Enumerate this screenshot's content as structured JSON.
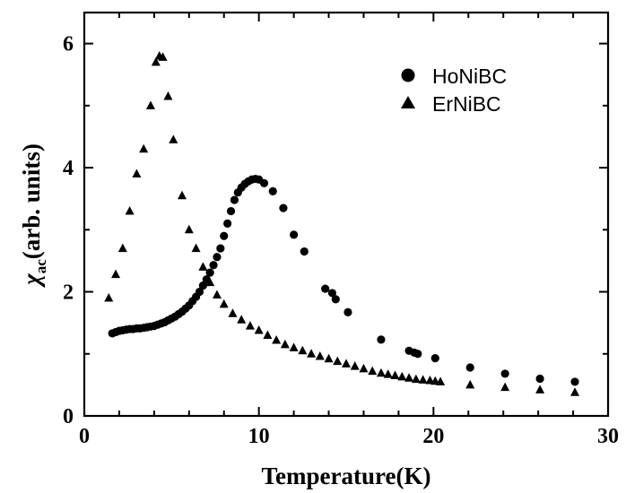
{
  "chart_data": {
    "type": "scatter",
    "xlabel": "Temperature(K)",
    "ylabel_symbol": "χ",
    "ylabel_subscript": "ac",
    "ylabel_rest": "(arb. units)",
    "xlim": [
      0,
      30
    ],
    "ylim": [
      0,
      6.5
    ],
    "xticks": [
      0,
      10,
      20,
      30
    ],
    "yticks": [
      0,
      2,
      4,
      6
    ],
    "grid": false,
    "legend_position": "top-right",
    "series": [
      {
        "name": "HoNiBC",
        "marker": "circle",
        "color": "#000000",
        "x": [
          1.6,
          1.8,
          2.0,
          2.2,
          2.4,
          2.6,
          2.8,
          3.0,
          3.2,
          3.4,
          3.6,
          3.8,
          4.0,
          4.2,
          4.4,
          4.6,
          4.8,
          5.0,
          5.2,
          5.4,
          5.6,
          5.8,
          6.0,
          6.2,
          6.4,
          6.6,
          6.8,
          7.0,
          7.2,
          7.4,
          7.6,
          7.8,
          8.0,
          8.2,
          8.4,
          8.6,
          8.8,
          9.0,
          9.2,
          9.4,
          9.6,
          9.8,
          10.0,
          10.3,
          10.8,
          11.4,
          12.0,
          12.6,
          13.8,
          14.2,
          14.4,
          15.1,
          17.0,
          18.6,
          18.9,
          19.1,
          20.1,
          22.1,
          24.1,
          26.1,
          28.1
        ],
        "y": [
          1.33,
          1.35,
          1.37,
          1.38,
          1.39,
          1.4,
          1.4,
          1.41,
          1.41,
          1.42,
          1.43,
          1.44,
          1.45,
          1.47,
          1.49,
          1.51,
          1.54,
          1.57,
          1.6,
          1.64,
          1.68,
          1.73,
          1.78,
          1.85,
          1.92,
          2.0,
          2.1,
          2.2,
          2.31,
          2.43,
          2.56,
          2.7,
          2.9,
          3.1,
          3.3,
          3.48,
          3.6,
          3.68,
          3.74,
          3.78,
          3.81,
          3.82,
          3.81,
          3.75,
          3.62,
          3.35,
          2.92,
          2.65,
          2.05,
          1.98,
          1.88,
          1.67,
          1.23,
          1.05,
          1.02,
          1.0,
          0.93,
          0.78,
          0.68,
          0.6,
          0.55
        ]
      },
      {
        "name": "ErNiBC",
        "marker": "triangle",
        "color": "#000000",
        "x": [
          1.4,
          1.8,
          2.2,
          2.6,
          3.0,
          3.4,
          3.8,
          4.1,
          4.3,
          4.5,
          4.8,
          5.1,
          5.6,
          6.0,
          6.4,
          6.8,
          7.2,
          7.6,
          8.0,
          8.5,
          9.0,
          9.5,
          10.0,
          10.5,
          11.0,
          11.5,
          12.0,
          12.5,
          13.0,
          13.5,
          14.0,
          14.5,
          15.0,
          15.5,
          16.0,
          16.5,
          17.0,
          17.4,
          17.8,
          18.2,
          18.6,
          19.0,
          19.4,
          19.8,
          20.1,
          20.4,
          22.1,
          24.1,
          26.1,
          28.1
        ],
        "y": [
          1.9,
          2.28,
          2.7,
          3.3,
          3.9,
          4.3,
          5.0,
          5.7,
          5.8,
          5.78,
          5.15,
          4.45,
          3.55,
          3.0,
          2.7,
          2.4,
          2.15,
          1.95,
          1.8,
          1.65,
          1.55,
          1.45,
          1.38,
          1.3,
          1.22,
          1.15,
          1.1,
          1.05,
          1.0,
          0.96,
          0.92,
          0.88,
          0.84,
          0.8,
          0.76,
          0.72,
          0.69,
          0.67,
          0.65,
          0.63,
          0.61,
          0.59,
          0.58,
          0.57,
          0.56,
          0.55,
          0.5,
          0.46,
          0.42,
          0.38
        ]
      }
    ]
  }
}
